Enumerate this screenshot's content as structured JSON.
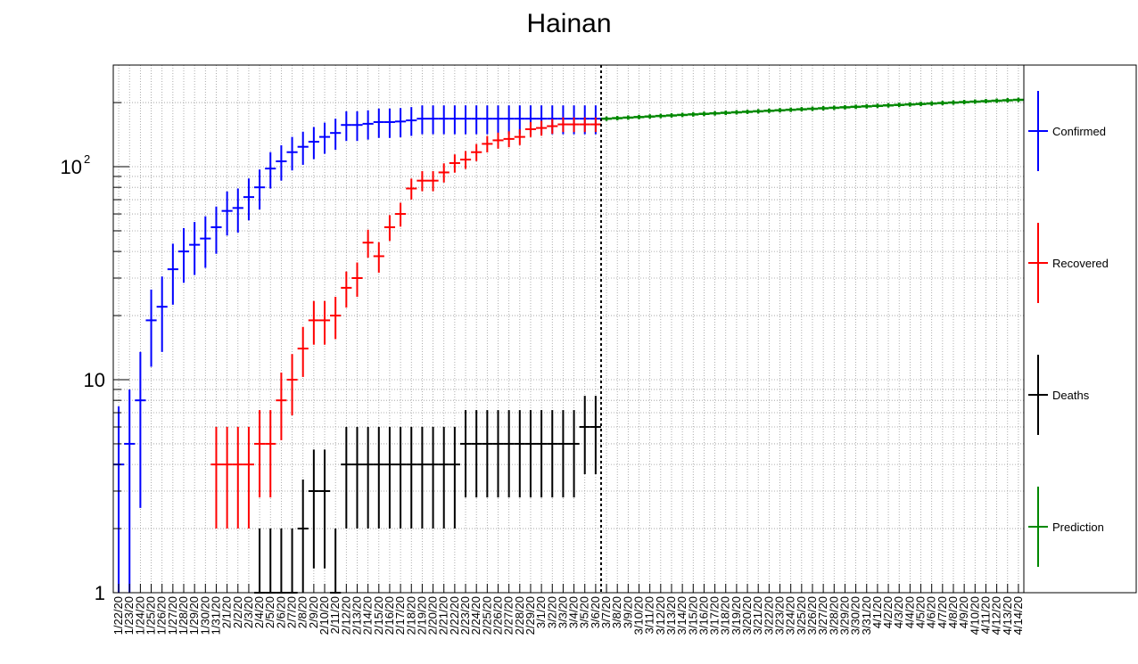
{
  "chart_data": {
    "type": "scatter",
    "title": "Hainan",
    "y_scale": "log",
    "ylim": [
      1,
      300
    ],
    "y_tick_labels": [
      {
        "value": 1,
        "label": "1"
      },
      {
        "value": 10,
        "label": "10"
      },
      {
        "value": 100,
        "label": "10",
        "exponent": "2"
      }
    ],
    "x_labels": [
      "1/22/20",
      "1/23/20",
      "1/24/20",
      "1/25/20",
      "1/26/20",
      "1/27/20",
      "1/28/20",
      "1/29/20",
      "1/30/20",
      "1/31/20",
      "2/1/20",
      "2/2/20",
      "2/3/20",
      "2/4/20",
      "2/5/20",
      "2/6/20",
      "2/7/20",
      "2/8/20",
      "2/9/20",
      "2/10/20",
      "2/11/20",
      "2/12/20",
      "2/13/20",
      "2/14/20",
      "2/15/20",
      "2/16/20",
      "2/17/20",
      "2/18/20",
      "2/19/20",
      "2/20/20",
      "2/21/20",
      "2/22/20",
      "2/23/20",
      "2/24/20",
      "2/25/20",
      "2/26/20",
      "2/27/20",
      "2/28/20",
      "2/29/20",
      "3/1/20",
      "3/2/20",
      "3/3/20",
      "3/4/20",
      "3/5/20",
      "3/6/20",
      "3/7/20",
      "3/8/20",
      "3/9/20",
      "3/10/20",
      "3/11/20",
      "3/12/20",
      "3/13/20",
      "3/14/20",
      "3/15/20",
      "3/16/20",
      "3/17/20",
      "3/18/20",
      "3/19/20",
      "3/20/20",
      "3/21/20",
      "3/22/20",
      "3/23/20",
      "3/24/20",
      "3/25/20",
      "3/26/20",
      "3/27/20",
      "3/28/20",
      "3/29/20",
      "3/30/20",
      "3/31/20",
      "4/1/20",
      "4/2/20",
      "4/3/20",
      "4/4/20",
      "4/5/20",
      "4/6/20",
      "4/7/20",
      "4/8/20",
      "4/9/20",
      "4/10/20",
      "4/11/20",
      "4/12/20",
      "4/13/20",
      "4/14/20"
    ],
    "prediction_start": "3/7/20",
    "grid": true,
    "legend_position": "right",
    "series": [
      {
        "name": "Confirmed",
        "color": "#0000ff",
        "x": [
          "1/22/20",
          "1/23/20",
          "1/24/20",
          "1/25/20",
          "1/26/20",
          "1/27/20",
          "1/28/20",
          "1/29/20",
          "1/30/20",
          "1/31/20",
          "2/1/20",
          "2/2/20",
          "2/3/20",
          "2/4/20",
          "2/5/20",
          "2/6/20",
          "2/7/20",
          "2/8/20",
          "2/9/20",
          "2/10/20",
          "2/11/20",
          "2/12/20",
          "2/13/20",
          "2/14/20",
          "2/15/20",
          "2/16/20",
          "2/17/20",
          "2/18/20",
          "2/19/20",
          "2/20/20",
          "2/21/20",
          "2/22/20",
          "2/23/20",
          "2/24/20",
          "2/25/20",
          "2/26/20",
          "2/27/20",
          "2/28/20",
          "2/29/20",
          "3/1/20",
          "3/2/20",
          "3/3/20",
          "3/4/20",
          "3/5/20",
          "3/6/20"
        ],
        "values": [
          4,
          5,
          8,
          19,
          22,
          33,
          40,
          43,
          46,
          52,
          62,
          64,
          72,
          80,
          98,
          106,
          117,
          124,
          131,
          138,
          144,
          157,
          157,
          159,
          162,
          162,
          163,
          165,
          168,
          168,
          168,
          168,
          168,
          168,
          168,
          168,
          168,
          168,
          168,
          168,
          168,
          168,
          168,
          168,
          168
        ],
        "errors": [
          3.5,
          4,
          5.5,
          7.5,
          8.5,
          10.5,
          11.5,
          12,
          12.5,
          13,
          14.5,
          15,
          16,
          17,
          19,
          20,
          21,
          22,
          22.5,
          23,
          24,
          25,
          25,
          25,
          25.5,
          25.5,
          25.5,
          25.5,
          26,
          26,
          26,
          26,
          26,
          26,
          26,
          26,
          26,
          26,
          26,
          26,
          26,
          26,
          26,
          26,
          26
        ]
      },
      {
        "name": "Recovered",
        "color": "#ff0000",
        "x": [
          "1/31/20",
          "2/1/20",
          "2/2/20",
          "2/3/20",
          "2/4/20",
          "2/5/20",
          "2/6/20",
          "2/7/20",
          "2/8/20",
          "2/9/20",
          "2/10/20",
          "2/11/20",
          "2/12/20",
          "2/13/20",
          "2/14/20",
          "2/15/20",
          "2/16/20",
          "2/17/20",
          "2/18/20",
          "2/19/20",
          "2/20/20",
          "2/21/20",
          "2/22/20",
          "2/23/20",
          "2/24/20",
          "2/25/20",
          "2/26/20",
          "2/27/20",
          "2/28/20",
          "2/29/20",
          "3/1/20",
          "3/2/20",
          "3/3/20",
          "3/4/20",
          "3/5/20",
          "3/6/20"
        ],
        "values": [
          4,
          4,
          4,
          4,
          5,
          5,
          8,
          10,
          14,
          19,
          19,
          20,
          27,
          30,
          44,
          38,
          52,
          60,
          79,
          86,
          86,
          94,
          104,
          108,
          117,
          128,
          133,
          135,
          138,
          150,
          152,
          155,
          158,
          158,
          158,
          158
        ],
        "errors": [
          2,
          2,
          2,
          2,
          2.2,
          2.2,
          2.8,
          3.2,
          3.7,
          4.4,
          4.4,
          4.5,
          5.2,
          5.5,
          6.6,
          6.2,
          7.2,
          7.7,
          8.9,
          9.3,
          9.3,
          9.7,
          10.2,
          10.4,
          10.8,
          11.3,
          11.5,
          11.6,
          11.7,
          12.2,
          12.3,
          12.4,
          12.6,
          12.6,
          12.6,
          12.6
        ]
      },
      {
        "name": "Deaths",
        "color": "#000000",
        "x": [
          "2/4/20",
          "2/5/20",
          "2/6/20",
          "2/7/20",
          "2/8/20",
          "2/9/20",
          "2/10/20",
          "2/11/20",
          "2/12/20",
          "2/13/20",
          "2/14/20",
          "2/15/20",
          "2/16/20",
          "2/17/20",
          "2/18/20",
          "2/19/20",
          "2/20/20",
          "2/21/20",
          "2/22/20",
          "2/23/20",
          "2/24/20",
          "2/25/20",
          "2/26/20",
          "2/27/20",
          "2/28/20",
          "2/29/20",
          "3/1/20",
          "3/2/20",
          "3/3/20",
          "3/4/20",
          "3/5/20",
          "3/6/20"
        ],
        "values": [
          1,
          1,
          1,
          1,
          2,
          3,
          3,
          1,
          4,
          4,
          4,
          4,
          4,
          4,
          4,
          4,
          4,
          4,
          4,
          5,
          5,
          5,
          5,
          5,
          5,
          5,
          5,
          5,
          5,
          5,
          6,
          6
        ],
        "errors": [
          1,
          1,
          1,
          1,
          1.4,
          1.7,
          1.7,
          1,
          2,
          2,
          2,
          2,
          2,
          2,
          2,
          2,
          2,
          2,
          2,
          2.2,
          2.2,
          2.2,
          2.2,
          2.2,
          2.2,
          2.2,
          2.2,
          2.2,
          2.2,
          2.2,
          2.4,
          2.4
        ]
      },
      {
        "name": "Prediction",
        "color": "#008800",
        "x": [
          "3/7/20",
          "3/8/20",
          "3/9/20",
          "3/10/20",
          "3/11/20",
          "3/12/20",
          "3/13/20",
          "3/14/20",
          "3/15/20",
          "3/16/20",
          "3/17/20",
          "3/18/20",
          "3/19/20",
          "3/20/20",
          "3/21/20",
          "3/22/20",
          "3/23/20",
          "3/24/20",
          "3/25/20",
          "3/26/20",
          "3/27/20",
          "3/28/20",
          "3/29/20",
          "3/30/20",
          "3/31/20",
          "4/1/20",
          "4/2/20",
          "4/3/20",
          "4/4/20",
          "4/5/20",
          "4/6/20",
          "4/7/20",
          "4/8/20",
          "4/9/20",
          "4/10/20",
          "4/11/20",
          "4/12/20",
          "4/13/20",
          "4/14/20"
        ],
        "values": [
          168,
          169,
          170,
          171,
          172,
          173,
          174,
          175,
          176,
          177,
          178,
          179,
          180,
          181,
          182,
          183,
          184,
          185,
          186,
          187,
          188,
          189,
          190,
          191,
          192,
          193,
          194,
          195,
          196,
          197,
          198,
          199,
          200,
          201,
          202,
          203,
          204,
          205,
          206
        ],
        "errors": [
          0,
          0,
          0,
          0,
          0,
          0,
          0,
          0,
          0,
          0,
          0,
          0,
          0,
          0,
          0,
          0,
          0,
          0,
          0,
          0,
          0,
          0,
          0,
          0,
          0,
          0,
          0,
          0,
          0,
          0,
          0,
          0,
          0,
          0,
          0,
          0,
          0,
          0,
          0
        ]
      }
    ]
  }
}
